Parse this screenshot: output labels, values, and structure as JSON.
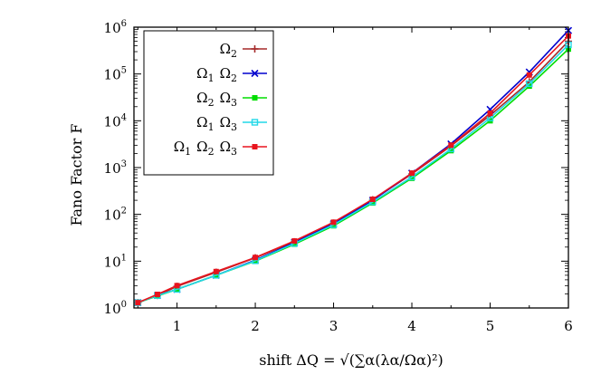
{
  "chart_data": {
    "type": "line",
    "title": "",
    "xlabel": "shift ΔQ = √(∑α(λα/Ωα)²)",
    "ylabel": "Fano Factor F",
    "xlim": [
      0.45,
      6.0
    ],
    "ylim": [
      1,
      1000000
    ],
    "yscale": "log",
    "grid": false,
    "legend_position": "top-left",
    "x_ticks": [
      1,
      2,
      3,
      4,
      5,
      6
    ],
    "x_tick_labels": [
      "1",
      "2",
      "3",
      "4",
      "5",
      "6"
    ],
    "y_ticks": [
      1,
      10,
      100,
      1000,
      10000,
      100000,
      1000000
    ],
    "y_tick_labels": [
      {
        "base": "10",
        "exp": "0"
      },
      {
        "base": "10",
        "exp": "1"
      },
      {
        "base": "10",
        "exp": "2"
      },
      {
        "base": "10",
        "exp": "3"
      },
      {
        "base": "10",
        "exp": "4"
      },
      {
        "base": "10",
        "exp": "5"
      },
      {
        "base": "10",
        "exp": "6"
      }
    ],
    "x": [
      0.5,
      0.75,
      1.0,
      1.5,
      2.0,
      2.5,
      3.0,
      3.5,
      4.0,
      4.5,
      5.0,
      5.5,
      6.0
    ],
    "series": [
      {
        "name": "Ω2",
        "label_parts": [
          {
            "base": "Ω",
            "sub": "2"
          }
        ],
        "color": "#a52a2a",
        "marker": "plus",
        "values": [
          1.3,
          1.85,
          2.9,
          5.8,
          11.8,
          26,
          65,
          205,
          730,
          2900,
          13000,
          68000,
          500000
        ]
      },
      {
        "name": "Ω1 Ω2",
        "label_parts": [
          {
            "base": "Ω",
            "sub": "1"
          },
          {
            "base": "Ω",
            "sub": "2"
          }
        ],
        "color": "#0000cd",
        "marker": "x",
        "values": [
          1.3,
          1.85,
          2.5,
          5.0,
          10.5,
          25,
          63,
          200,
          760,
          3200,
          17500,
          110000,
          850000
        ]
      },
      {
        "name": "Ω2 Ω3",
        "label_parts": [
          {
            "base": "Ω",
            "sub": "2"
          },
          {
            "base": "Ω",
            "sub": "3"
          }
        ],
        "color": "#00dd00",
        "marker": "square",
        "values": [
          1.3,
          1.8,
          2.5,
          5.0,
          10.0,
          23,
          57,
          175,
          590,
          2300,
          10000,
          55000,
          340000
        ]
      },
      {
        "name": "Ω1 Ω3",
        "label_parts": [
          {
            "base": "Ω",
            "sub": "1"
          },
          {
            "base": "Ω",
            "sub": "3"
          }
        ],
        "color": "#22d8e8",
        "marker": "square-open",
        "values": [
          1.3,
          1.85,
          2.5,
          5.0,
          10.2,
          24,
          60,
          185,
          630,
          2500,
          11500,
          62000,
          420000
        ]
      },
      {
        "name": "Ω1 Ω2 Ω3",
        "label_parts": [
          {
            "base": "Ω",
            "sub": "1"
          },
          {
            "base": "Ω",
            "sub": "2"
          },
          {
            "base": "Ω",
            "sub": "3"
          }
        ],
        "color": "#e8141e",
        "marker": "square",
        "values": [
          1.3,
          1.95,
          3.0,
          6.0,
          12.0,
          27,
          68,
          210,
          760,
          3000,
          14500,
          95000,
          650000
        ]
      }
    ]
  }
}
